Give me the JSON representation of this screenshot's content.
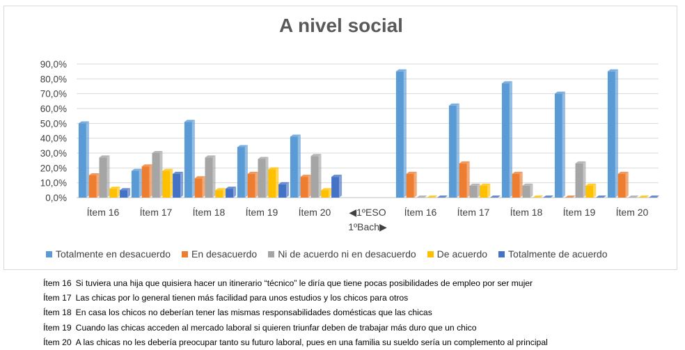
{
  "chart_data": {
    "type": "bar",
    "title": "A nivel social",
    "ylim": [
      0,
      0.9
    ],
    "ytick_labels": [
      "0,0%",
      "10,0%",
      "20,0%",
      "30,0%",
      "40,0%",
      "50,0%",
      "60,0%",
      "70,0%",
      "80,0%",
      "90,0%"
    ],
    "categories": [
      "Ítem 16",
      "Ítem 17",
      "Ítem 18",
      "Ítem 19",
      "Ítem 20",
      "",
      "Ítem 16",
      "Ítem 17",
      "Ítem 18",
      "Ítem 19",
      "Ítem 20"
    ],
    "separator_labels": [
      "◀1ºESO",
      "1ºBach▶"
    ],
    "grid": true,
    "legend_position": "bottom",
    "series": [
      {
        "name": "Totalmente  en desacuerdo",
        "color": "#5b9bd5",
        "values": [
          0.5,
          0.18,
          0.51,
          0.34,
          0.41,
          null,
          0.85,
          0.62,
          0.77,
          0.7,
          0.85
        ]
      },
      {
        "name": "En desacuerdo",
        "color": "#ed7d31",
        "values": [
          0.15,
          0.21,
          0.13,
          0.16,
          0.14,
          null,
          0.16,
          0.23,
          0.16,
          0.0,
          0.16
        ]
      },
      {
        "name": "Ni de acuerdo ni en desacuerdo",
        "color": "#a5a5a5",
        "values": [
          0.27,
          0.3,
          0.27,
          0.26,
          0.28,
          null,
          0.0,
          0.08,
          0.08,
          0.23,
          0.0
        ]
      },
      {
        "name": "De acuerdo",
        "color": "#ffc000",
        "values": [
          0.06,
          0.18,
          0.05,
          0.19,
          0.05,
          null,
          0.0,
          0.08,
          0.0,
          0.08,
          0.0
        ]
      },
      {
        "name": "Totalmente de acuerdo",
        "color": "#4472c4",
        "values": [
          0.05,
          0.16,
          0.06,
          0.09,
          0.14,
          null,
          0.0,
          0.0,
          0.0,
          0.0,
          0.0
        ]
      }
    ]
  },
  "notes": [
    {
      "id": "Ítem 16",
      "text": "Si tuviera una hija que quisiera hacer un itinerario “técnico” le diría que tiene pocas posibilidades de empleo por ser mujer"
    },
    {
      "id": "Ítem 17",
      "text": "Las chicas por lo general  tienen más facilidad para unos estudios y los chicos para otros"
    },
    {
      "id": "Ítem 18",
      "text": "En casa los chicos no deberían tener las mismas responsabilidades domésticas que las chicas"
    },
    {
      "id": "Ítem 19",
      "text": "Cuando las chicas acceden al mercado laboral si quieren triunfar deben de trabajar más duro que un chico"
    },
    {
      "id": "Ítem 20",
      "text": "A las chicas no les debería preocupar tanto su futuro laboral, pues en una familia su sueldo sería un complemento al principal"
    }
  ]
}
